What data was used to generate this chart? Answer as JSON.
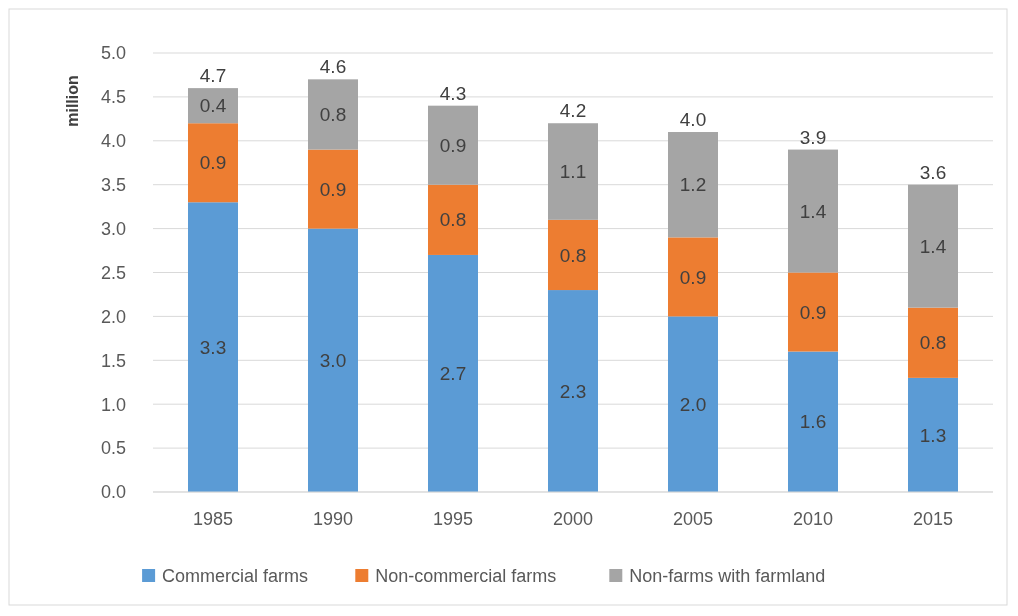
{
  "chart_data": {
    "type": "bar",
    "stacked": true,
    "ylabel": "million",
    "categories": [
      "1985",
      "1990",
      "1995",
      "2000",
      "2005",
      "2010",
      "2015"
    ],
    "series": [
      {
        "name": "Commercial farms",
        "color": "#5b9bd5",
        "values": [
          3.3,
          3.0,
          2.7,
          2.3,
          2.0,
          1.6,
          1.3
        ],
        "value_labels": [
          "3.3",
          "3.0",
          "2.7",
          "2.3",
          "2.0",
          "1.6",
          "1.3"
        ]
      },
      {
        "name": "Non-commercial farms",
        "color": "#ed7d31",
        "values": [
          0.9,
          0.9,
          0.8,
          0.8,
          0.9,
          0.9,
          0.8
        ],
        "value_labels": [
          "0.9",
          "0.9",
          "0.8",
          "0.8",
          "0.9",
          "0.9",
          "0.8"
        ]
      },
      {
        "name": "Non-farms with farmland",
        "color": "#a5a5a5",
        "values": [
          0.4,
          0.8,
          0.9,
          1.1,
          1.2,
          1.4,
          1.4
        ],
        "value_labels": [
          "0.4",
          "0.8",
          "0.9",
          "1.1",
          "1.2",
          "1.4",
          "1.4"
        ]
      }
    ],
    "totals": [
      "4.7",
      "4.6",
      "4.3",
      "4.2",
      "4.0",
      "3.9",
      "3.6"
    ],
    "ylim": [
      0,
      5
    ],
    "yticks": [
      {
        "value": 0,
        "label": "0.0"
      },
      {
        "value": 0.5,
        "label": "0.5"
      },
      {
        "value": 1,
        "label": "1.0"
      },
      {
        "value": 1.5,
        "label": "1.5"
      },
      {
        "value": 2,
        "label": "2.0"
      },
      {
        "value": 2.5,
        "label": "2.5"
      },
      {
        "value": 3,
        "label": "3.0"
      },
      {
        "value": 3.5,
        "label": "3.5"
      },
      {
        "value": 4,
        "label": "4.0"
      },
      {
        "value": 4.5,
        "label": "4.5"
      },
      {
        "value": 5,
        "label": "5.0"
      }
    ],
    "grid": "y",
    "legend": "bottom"
  }
}
